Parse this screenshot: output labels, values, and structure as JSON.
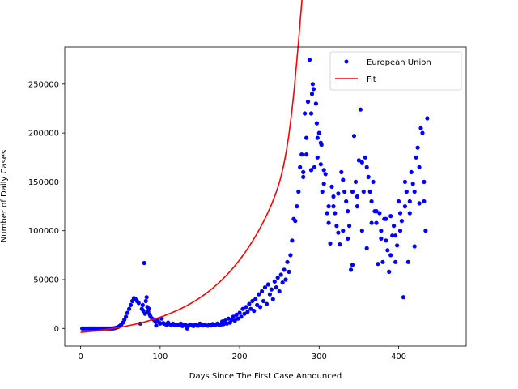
{
  "chart_data": {
    "type": "scatter",
    "xlabel": "Days Since The First Case Announced",
    "ylabel": "Number of Daily Cases",
    "xlim": [
      -20,
      485
    ],
    "ylim": [
      -18000,
      288000
    ],
    "xticks": [
      0,
      100,
      200,
      300,
      400
    ],
    "yticks": [
      0,
      50000,
      100000,
      150000,
      200000,
      250000
    ],
    "ytick_labels": [
      "0",
      "50000",
      "100000",
      "150000",
      "200000",
      "250000"
    ],
    "legend_position": "top-right",
    "grid": false,
    "series": [
      {
        "name": "European Union",
        "kind": "scatter",
        "color": "#0000ff",
        "points": [
          [
            2,
            0
          ],
          [
            4,
            0
          ],
          [
            6,
            0
          ],
          [
            8,
            0
          ],
          [
            10,
            0
          ],
          [
            12,
            0
          ],
          [
            14,
            0
          ],
          [
            16,
            0
          ],
          [
            18,
            0
          ],
          [
            20,
            0
          ],
          [
            22,
            0
          ],
          [
            24,
            0
          ],
          [
            26,
            0
          ],
          [
            28,
            0
          ],
          [
            30,
            0
          ],
          [
            32,
            0
          ],
          [
            34,
            0
          ],
          [
            36,
            0
          ],
          [
            38,
            0
          ],
          [
            40,
            0
          ],
          [
            41,
            200
          ],
          [
            43,
            400
          ],
          [
            45,
            800
          ],
          [
            47,
            1500
          ],
          [
            49,
            2500
          ],
          [
            51,
            4000
          ],
          [
            53,
            6000
          ],
          [
            55,
            9000
          ],
          [
            57,
            12000
          ],
          [
            59,
            16000
          ],
          [
            61,
            20000
          ],
          [
            63,
            24000
          ],
          [
            65,
            28000
          ],
          [
            67,
            31000
          ],
          [
            69,
            30000
          ],
          [
            71,
            28000
          ],
          [
            73,
            26000
          ],
          [
            75,
            5000
          ],
          [
            77,
            20000
          ],
          [
            78,
            24000
          ],
          [
            79,
            18000
          ],
          [
            80,
            67000
          ],
          [
            81,
            15000
          ],
          [
            82,
            28000
          ],
          [
            83,
            32000
          ],
          [
            84,
            22000
          ],
          [
            85,
            17000
          ],
          [
            86,
            20000
          ],
          [
            87,
            14000
          ],
          [
            88,
            12000
          ],
          [
            90,
            10000
          ],
          [
            92,
            9000
          ],
          [
            94,
            7000
          ],
          [
            95,
            3000
          ],
          [
            97,
            8000
          ],
          [
            99,
            6000
          ],
          [
            100,
            5000
          ],
          [
            102,
            10000
          ],
          [
            104,
            5500
          ],
          [
            106,
            4500
          ],
          [
            108,
            4000
          ],
          [
            110,
            6000
          ],
          [
            112,
            4200
          ],
          [
            114,
            3800
          ],
          [
            116,
            5000
          ],
          [
            118,
            3500
          ],
          [
            120,
            4000
          ],
          [
            122,
            3800
          ],
          [
            124,
            3200
          ],
          [
            126,
            5000
          ],
          [
            128,
            2500
          ],
          [
            130,
            4000
          ],
          [
            132,
            3500
          ],
          [
            134,
            0
          ],
          [
            136,
            2800
          ],
          [
            138,
            4000
          ],
          [
            140,
            3000
          ],
          [
            142,
            2500
          ],
          [
            144,
            4000
          ],
          [
            146,
            3000
          ],
          [
            148,
            2800
          ],
          [
            150,
            5000
          ],
          [
            152,
            3500
          ],
          [
            154,
            3000
          ],
          [
            156,
            4000
          ],
          [
            158,
            3000
          ],
          [
            160,
            2800
          ],
          [
            162,
            3500
          ],
          [
            164,
            3000
          ],
          [
            166,
            4500
          ],
          [
            168,
            3200
          ],
          [
            170,
            3800
          ],
          [
            172,
            5000
          ],
          [
            174,
            4000
          ],
          [
            176,
            3500
          ],
          [
            178,
            7000
          ],
          [
            180,
            4500
          ],
          [
            182,
            8000
          ],
          [
            184,
            5000
          ],
          [
            186,
            10000
          ],
          [
            188,
            6000
          ],
          [
            190,
            9000
          ],
          [
            192,
            12000
          ],
          [
            194,
            8000
          ],
          [
            196,
            14000
          ],
          [
            198,
            10000
          ],
          [
            200,
            16000
          ],
          [
            202,
            12000
          ],
          [
            204,
            20000
          ],
          [
            206,
            15000
          ],
          [
            208,
            22000
          ],
          [
            210,
            17000
          ],
          [
            212,
            25000
          ],
          [
            214,
            20000
          ],
          [
            216,
            28000
          ],
          [
            218,
            18000
          ],
          [
            220,
            30000
          ],
          [
            222,
            24000
          ],
          [
            224,
            35000
          ],
          [
            226,
            22000
          ],
          [
            228,
            38000
          ],
          [
            230,
            28000
          ],
          [
            232,
            42000
          ],
          [
            234,
            25000
          ],
          [
            236,
            45000
          ],
          [
            238,
            35000
          ],
          [
            240,
            40000
          ],
          [
            242,
            30000
          ],
          [
            244,
            48000
          ],
          [
            246,
            42000
          ],
          [
            248,
            52000
          ],
          [
            250,
            38000
          ],
          [
            252,
            55000
          ],
          [
            254,
            47000
          ],
          [
            256,
            60000
          ],
          [
            258,
            50000
          ],
          [
            260,
            68000
          ],
          [
            262,
            58000
          ],
          [
            264,
            75000
          ],
          [
            266,
            90000
          ],
          [
            268,
            112000
          ],
          [
            270,
            110000
          ],
          [
            272,
            125000
          ],
          [
            274,
            140000
          ],
          [
            276,
            165000
          ],
          [
            278,
            178000
          ],
          [
            280,
            155000
          ],
          [
            282,
            220000
          ],
          [
            284,
            195000
          ],
          [
            286,
            232000
          ],
          [
            288,
            275000
          ],
          [
            290,
            220000
          ],
          [
            291,
            240000
          ],
          [
            292,
            250000
          ],
          [
            293,
            245000
          ],
          [
            294,
            165000
          ],
          [
            296,
            230000
          ],
          [
            297,
            210000
          ],
          [
            298,
            175000
          ],
          [
            300,
            200000
          ],
          [
            302,
            190000
          ],
          [
            303,
            188000
          ],
          [
            304,
            140000
          ],
          [
            306,
            162000
          ],
          [
            308,
            158000
          ],
          [
            310,
            118000
          ],
          [
            312,
            108000
          ],
          [
            314,
            87000
          ],
          [
            316,
            145000
          ],
          [
            318,
            135000
          ],
          [
            320,
            118000
          ],
          [
            322,
            105000
          ],
          [
            324,
            98000
          ],
          [
            326,
            86000
          ],
          [
            328,
            160000
          ],
          [
            330,
            152000
          ],
          [
            332,
            140000
          ],
          [
            334,
            130000
          ],
          [
            336,
            120000
          ],
          [
            338,
            105000
          ],
          [
            340,
            60000
          ],
          [
            342,
            65000
          ],
          [
            344,
            197000
          ],
          [
            346,
            150000
          ],
          [
            348,
            125000
          ],
          [
            350,
            172000
          ],
          [
            352,
            224000
          ],
          [
            354,
            170000
          ],
          [
            356,
            140000
          ],
          [
            358,
            175000
          ],
          [
            360,
            165000
          ],
          [
            362,
            155000
          ],
          [
            364,
            140000
          ],
          [
            366,
            130000
          ],
          [
            368,
            150000
          ],
          [
            370,
            120000
          ],
          [
            372,
            108000
          ],
          [
            374,
            66000
          ],
          [
            376,
            118000
          ],
          [
            378,
            100000
          ],
          [
            380,
            68000
          ],
          [
            382,
            112000
          ],
          [
            384,
            90000
          ],
          [
            386,
            80000
          ],
          [
            388,
            58000
          ],
          [
            390,
            115000
          ],
          [
            392,
            95000
          ],
          [
            394,
            105000
          ],
          [
            396,
            68000
          ],
          [
            398,
            85000
          ],
          [
            400,
            130000
          ],
          [
            402,
            118000
          ],
          [
            404,
            110000
          ],
          [
            406,
            32000
          ],
          [
            408,
            125000
          ],
          [
            410,
            140000
          ],
          [
            412,
            68000
          ],
          [
            414,
            130000
          ],
          [
            416,
            160000
          ],
          [
            418,
            148000
          ],
          [
            420,
            140000
          ],
          [
            422,
            175000
          ],
          [
            424,
            185000
          ],
          [
            426,
            165000
          ],
          [
            428,
            205000
          ],
          [
            430,
            200000
          ],
          [
            432,
            150000
          ],
          [
            434,
            100000
          ],
          [
            436,
            215000
          ],
          [
            280,
            160000
          ],
          [
            284,
            178000
          ],
          [
            290,
            162000
          ],
          [
            298,
            195000
          ],
          [
            302,
            168000
          ],
          [
            306,
            148000
          ],
          [
            312,
            125000
          ],
          [
            318,
            125000
          ],
          [
            324,
            138000
          ],
          [
            330,
            100000
          ],
          [
            336,
            92000
          ],
          [
            342,
            140000
          ],
          [
            348,
            135000
          ],
          [
            354,
            100000
          ],
          [
            360,
            82000
          ],
          [
            366,
            108000
          ],
          [
            372,
            120000
          ],
          [
            378,
            92000
          ],
          [
            384,
            112000
          ],
          [
            390,
            75000
          ],
          [
            396,
            95000
          ],
          [
            402,
            100000
          ],
          [
            408,
            150000
          ],
          [
            414,
            118000
          ],
          [
            420,
            84000
          ],
          [
            426,
            128000
          ],
          [
            432,
            130000
          ]
        ]
      },
      {
        "name": "Fit",
        "kind": "line",
        "color": "#ff0000"
      }
    ]
  }
}
